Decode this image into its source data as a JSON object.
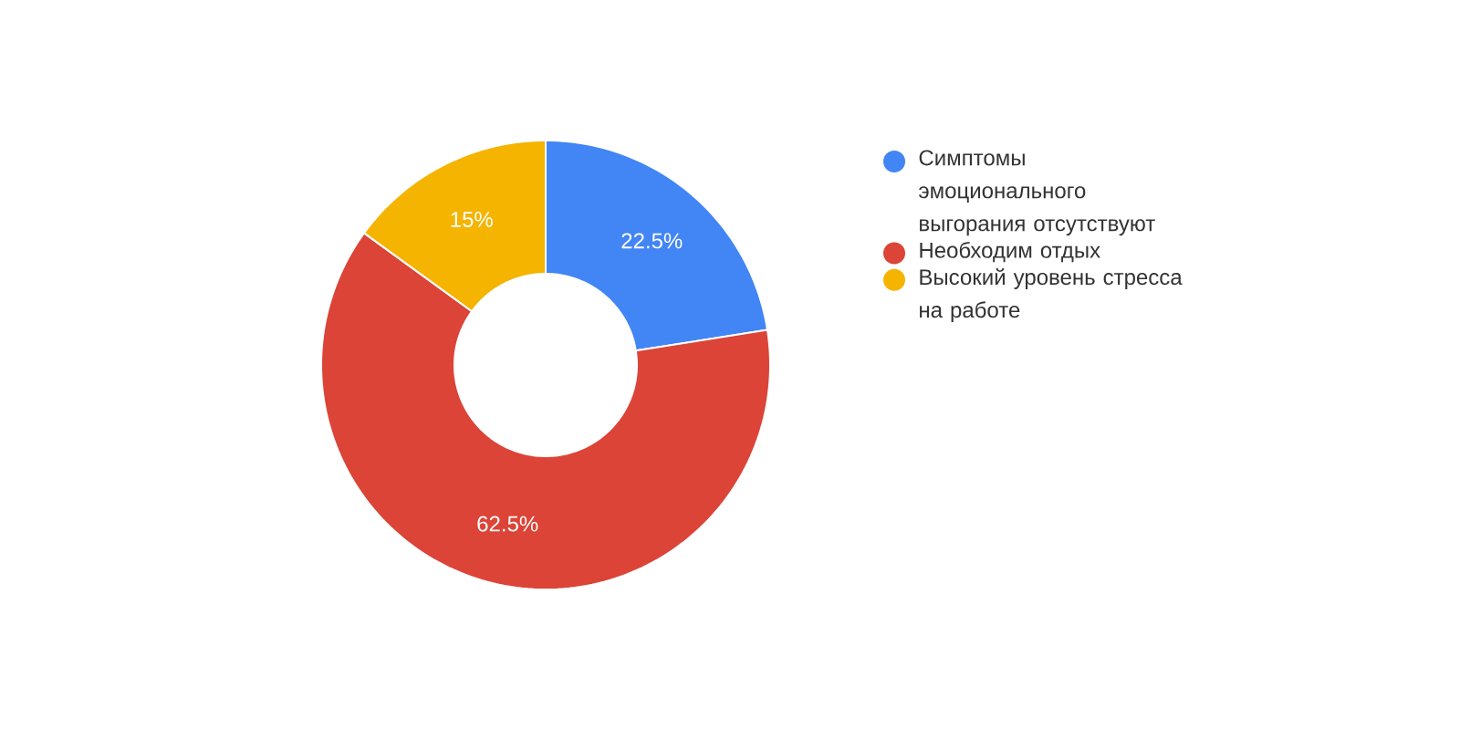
{
  "chart_data": {
    "type": "donut",
    "categories": [
      "Симптомы эмоционального выгорания отсутствуют",
      "Необходим отдых",
      "Высокий уровень стресса на работе"
    ],
    "values": [
      22.5,
      62.5,
      15
    ],
    "colors": [
      "#4285f4",
      "#db4437",
      "#f4b400"
    ],
    "value_labels": [
      "22.5%",
      "62.5%",
      "15%"
    ],
    "legend": "right"
  }
}
